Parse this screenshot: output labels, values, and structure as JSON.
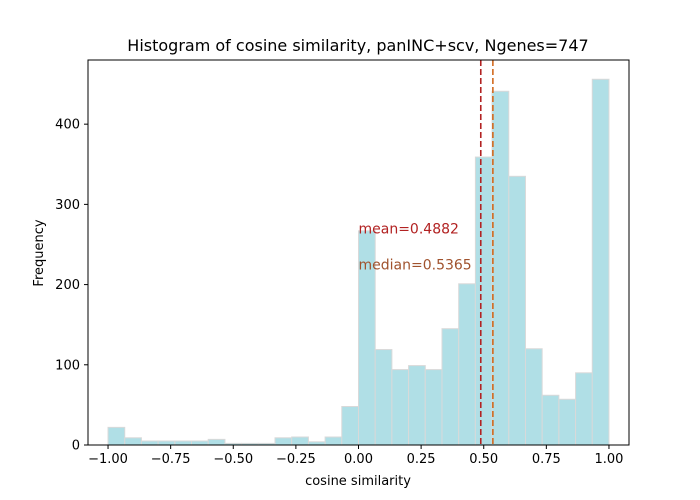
{
  "chart_data": {
    "type": "bar",
    "title": "Histogram of cosine similarity, panINC+scv, Ngenes=747",
    "xlabel": "cosine similarity",
    "ylabel": "Frequency",
    "xlim": [
      -1.08,
      1.08
    ],
    "ylim": [
      0,
      480
    ],
    "xticks": [
      -1.0,
      -0.75,
      -0.5,
      -0.25,
      0.0,
      0.25,
      0.5,
      0.75,
      1.0
    ],
    "xtick_labels": [
      "−1.00",
      "−0.75",
      "−0.50",
      "−0.25",
      "0.00",
      "0.25",
      "0.50",
      "0.75",
      "1.00"
    ],
    "yticks": [
      0,
      100,
      200,
      300,
      400
    ],
    "ytick_labels": [
      "0",
      "100",
      "200",
      "300",
      "400"
    ],
    "bin_edges": [
      -1.0,
      -0.9333,
      -0.8667,
      -0.8,
      -0.7333,
      -0.6667,
      -0.6,
      -0.5333,
      -0.4667,
      -0.4,
      -0.3333,
      -0.2667,
      -0.2,
      -0.1333,
      -0.0667,
      0.0,
      0.0667,
      0.1333,
      0.2,
      0.2667,
      0.3333,
      0.4,
      0.4667,
      0.5333,
      0.6,
      0.6667,
      0.7333,
      0.8,
      0.8667,
      0.9333,
      1.0
    ],
    "values": [
      22,
      9,
      5,
      5,
      5,
      5,
      7,
      2,
      2,
      2,
      9,
      10,
      4,
      10,
      48,
      267,
      119,
      94,
      99,
      94,
      145,
      201,
      359,
      441,
      335,
      120,
      62,
      57,
      90,
      456
    ],
    "bar_color": "#b0dfe6",
    "bar_edge_color": "#d9d9d9",
    "lines": [
      {
        "name": "mean",
        "x": 0.4882,
        "color": "#b22222",
        "style": "dashed"
      },
      {
        "name": "median",
        "x": 0.5365,
        "color": "#d2691e",
        "style": "dashed"
      }
    ],
    "annotations": [
      {
        "text": "mean=0.4882",
        "x": 0.0,
        "y": 270,
        "color": "#b22222"
      },
      {
        "text": "median=0.5365",
        "x": 0.0,
        "y": 225,
        "color": "#a0522d"
      }
    ]
  }
}
